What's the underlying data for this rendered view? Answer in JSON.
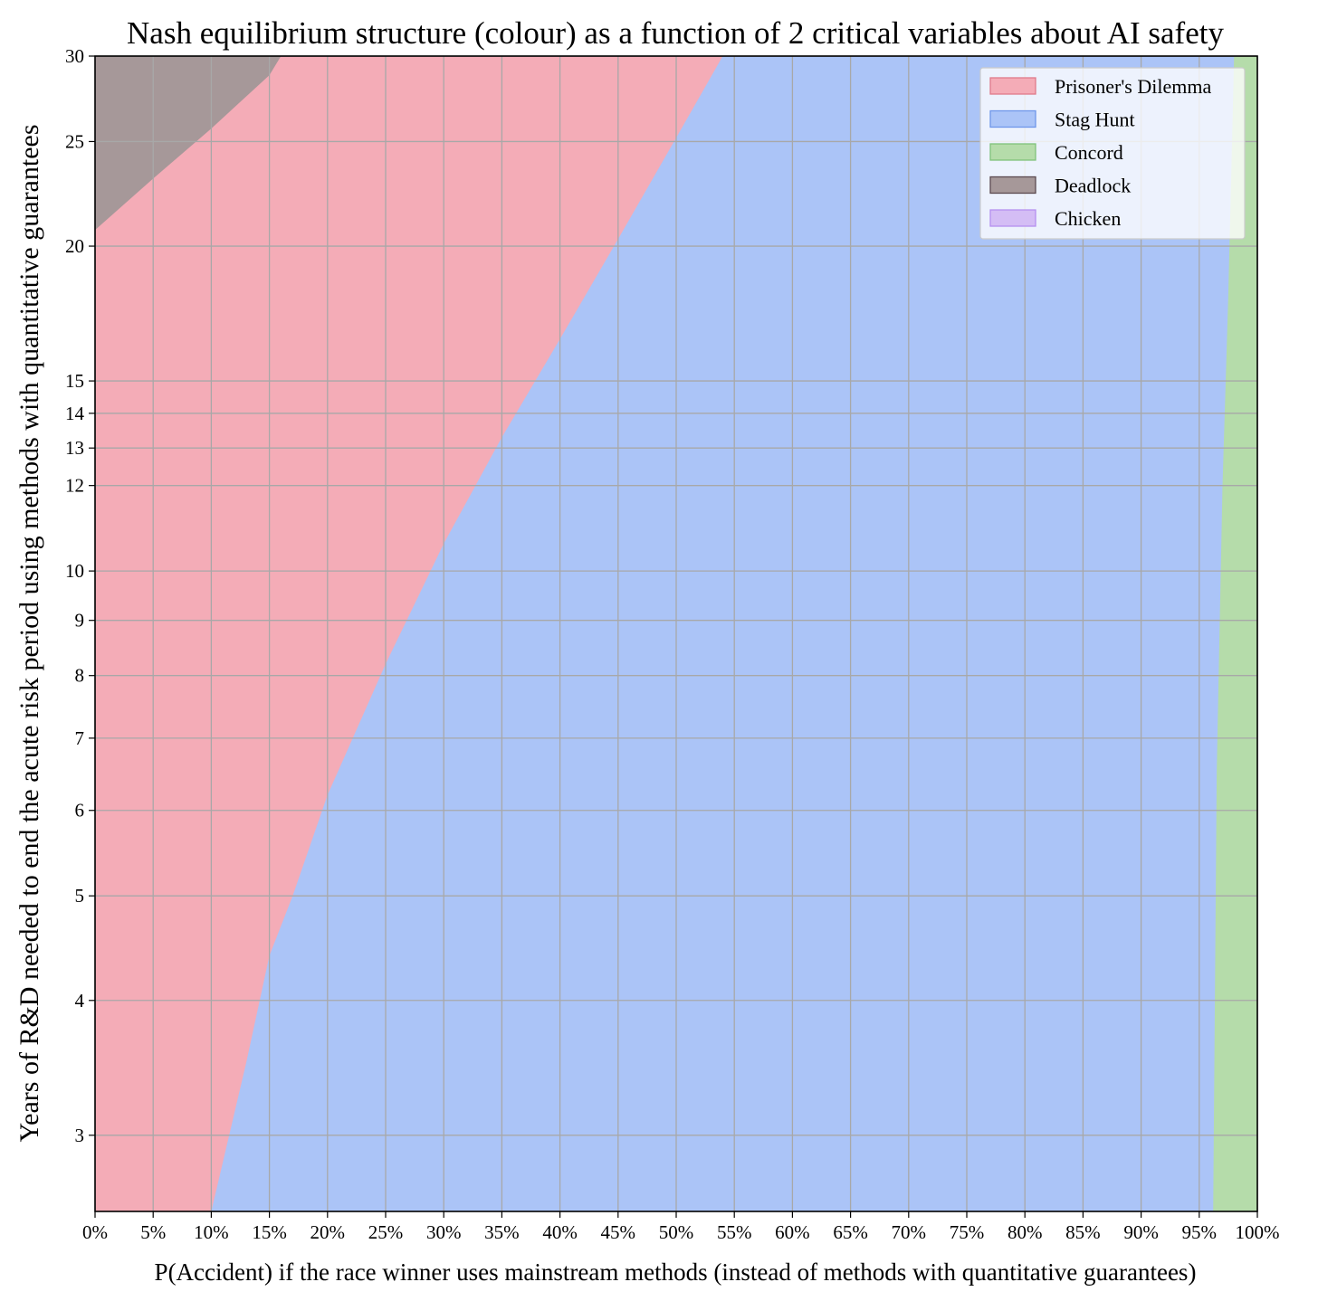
{
  "chart_data": {
    "type": "area",
    "title": "Nash equilibrium structure (colour) as a function of 2 critical variables about AI safety",
    "xlabel": "P(Accident) if the race winner uses mainstream methods (instead of methods with quantitative guarantees)",
    "ylabel": "Years of R&D needed to end the acute risk period using methods with quantitative guarantees",
    "x_scale": "linear",
    "y_scale": "log",
    "xlim": [
      0,
      1
    ],
    "ylim": [
      2.55,
      30
    ],
    "grid": true,
    "legend_position": "top-right",
    "x_ticks": [
      0,
      0.05,
      0.1,
      0.15,
      0.2,
      0.25,
      0.3,
      0.35,
      0.4,
      0.45,
      0.5,
      0.55,
      0.6,
      0.65,
      0.7,
      0.75,
      0.8,
      0.85,
      0.9,
      0.95,
      1.0
    ],
    "x_tick_labels": [
      "0%",
      "5%",
      "10%",
      "15%",
      "20%",
      "25%",
      "30%",
      "35%",
      "40%",
      "45%",
      "50%",
      "55%",
      "60%",
      "65%",
      "70%",
      "75%",
      "80%",
      "85%",
      "90%",
      "95%",
      "100%"
    ],
    "y_ticks": [
      3,
      4,
      5,
      6,
      7,
      8,
      9,
      10,
      12,
      13,
      14,
      15,
      20,
      25,
      30
    ],
    "y_tick_labels": [
      "3",
      "4",
      "5",
      "6",
      "7",
      "8",
      "9",
      "10",
      "12",
      "13",
      "14",
      "15",
      "20",
      "25",
      "30"
    ],
    "legend": [
      {
        "name": "Prisoner's Dilemma",
        "color": "#f4acb7",
        "edge": "#e07a8b"
      },
      {
        "name": "Stag Hunt",
        "color": "#abc4f7",
        "edge": "#6f97ea"
      },
      {
        "name": "Concord",
        "color": "#b5dcaa",
        "edge": "#7fc27a"
      },
      {
        "name": "Deadlock",
        "color": "#a69899",
        "edge": "#5c4a50"
      },
      {
        "name": "Chicken",
        "color": "#d4bdf5",
        "edge": "#b58ff0"
      }
    ],
    "regions": [
      {
        "name": "Prisoner's Dilemma",
        "color": "#f4acb7",
        "fill": "full"
      },
      {
        "name": "Deadlock",
        "color": "#a69899",
        "fill": "above",
        "x": [
          0.0,
          0.05,
          0.1,
          0.15,
          0.16
        ],
        "y": [
          20.7,
          23.1,
          25.7,
          28.8,
          30.0
        ]
      },
      {
        "name": "Stag Hunt",
        "color": "#abc4f7",
        "fill": "right",
        "x": [
          0.1,
          0.13,
          0.15,
          0.17,
          0.2,
          0.25,
          0.3,
          0.35,
          0.4,
          0.45,
          0.5,
          0.54
        ],
        "y": [
          2.55,
          3.5,
          4.4,
          5.0,
          6.2,
          8.2,
          10.6,
          13.3,
          16.4,
          20.3,
          25.2,
          30.0
        ]
      },
      {
        "name": "Concord",
        "color": "#b5dcaa",
        "fill": "right",
        "x": [
          0.962,
          0.965,
          0.97,
          0.975,
          0.98
        ],
        "y": [
          2.55,
          6.5,
          12.0,
          18.0,
          30.0
        ]
      }
    ]
  }
}
